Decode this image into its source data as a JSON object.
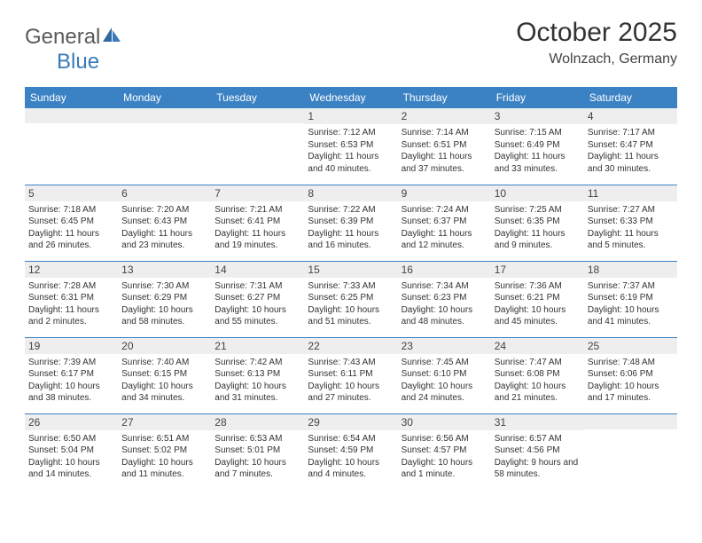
{
  "logo": {
    "text1": "General",
    "text2": "Blue"
  },
  "title": "October 2025",
  "location": "Wolnzach, Germany",
  "colors": {
    "header_bg": "#3b82c4",
    "header_text": "#ffffff",
    "daynum_bg": "#eeeeee",
    "border": "#3b82c4",
    "logo_gray": "#5a5a5a",
    "logo_blue": "#3a7ab8"
  },
  "day_headers": [
    "Sunday",
    "Monday",
    "Tuesday",
    "Wednesday",
    "Thursday",
    "Friday",
    "Saturday"
  ],
  "weeks": [
    [
      {
        "day": "",
        "sunrise": "",
        "sunset": "",
        "daylight": ""
      },
      {
        "day": "",
        "sunrise": "",
        "sunset": "",
        "daylight": ""
      },
      {
        "day": "",
        "sunrise": "",
        "sunset": "",
        "daylight": ""
      },
      {
        "day": "1",
        "sunrise": "Sunrise: 7:12 AM",
        "sunset": "Sunset: 6:53 PM",
        "daylight": "Daylight: 11 hours and 40 minutes."
      },
      {
        "day": "2",
        "sunrise": "Sunrise: 7:14 AM",
        "sunset": "Sunset: 6:51 PM",
        "daylight": "Daylight: 11 hours and 37 minutes."
      },
      {
        "day": "3",
        "sunrise": "Sunrise: 7:15 AM",
        "sunset": "Sunset: 6:49 PM",
        "daylight": "Daylight: 11 hours and 33 minutes."
      },
      {
        "day": "4",
        "sunrise": "Sunrise: 7:17 AM",
        "sunset": "Sunset: 6:47 PM",
        "daylight": "Daylight: 11 hours and 30 minutes."
      }
    ],
    [
      {
        "day": "5",
        "sunrise": "Sunrise: 7:18 AM",
        "sunset": "Sunset: 6:45 PM",
        "daylight": "Daylight: 11 hours and 26 minutes."
      },
      {
        "day": "6",
        "sunrise": "Sunrise: 7:20 AM",
        "sunset": "Sunset: 6:43 PM",
        "daylight": "Daylight: 11 hours and 23 minutes."
      },
      {
        "day": "7",
        "sunrise": "Sunrise: 7:21 AM",
        "sunset": "Sunset: 6:41 PM",
        "daylight": "Daylight: 11 hours and 19 minutes."
      },
      {
        "day": "8",
        "sunrise": "Sunrise: 7:22 AM",
        "sunset": "Sunset: 6:39 PM",
        "daylight": "Daylight: 11 hours and 16 minutes."
      },
      {
        "day": "9",
        "sunrise": "Sunrise: 7:24 AM",
        "sunset": "Sunset: 6:37 PM",
        "daylight": "Daylight: 11 hours and 12 minutes."
      },
      {
        "day": "10",
        "sunrise": "Sunrise: 7:25 AM",
        "sunset": "Sunset: 6:35 PM",
        "daylight": "Daylight: 11 hours and 9 minutes."
      },
      {
        "day": "11",
        "sunrise": "Sunrise: 7:27 AM",
        "sunset": "Sunset: 6:33 PM",
        "daylight": "Daylight: 11 hours and 5 minutes."
      }
    ],
    [
      {
        "day": "12",
        "sunrise": "Sunrise: 7:28 AM",
        "sunset": "Sunset: 6:31 PM",
        "daylight": "Daylight: 11 hours and 2 minutes."
      },
      {
        "day": "13",
        "sunrise": "Sunrise: 7:30 AM",
        "sunset": "Sunset: 6:29 PM",
        "daylight": "Daylight: 10 hours and 58 minutes."
      },
      {
        "day": "14",
        "sunrise": "Sunrise: 7:31 AM",
        "sunset": "Sunset: 6:27 PM",
        "daylight": "Daylight: 10 hours and 55 minutes."
      },
      {
        "day": "15",
        "sunrise": "Sunrise: 7:33 AM",
        "sunset": "Sunset: 6:25 PM",
        "daylight": "Daylight: 10 hours and 51 minutes."
      },
      {
        "day": "16",
        "sunrise": "Sunrise: 7:34 AM",
        "sunset": "Sunset: 6:23 PM",
        "daylight": "Daylight: 10 hours and 48 minutes."
      },
      {
        "day": "17",
        "sunrise": "Sunrise: 7:36 AM",
        "sunset": "Sunset: 6:21 PM",
        "daylight": "Daylight: 10 hours and 45 minutes."
      },
      {
        "day": "18",
        "sunrise": "Sunrise: 7:37 AM",
        "sunset": "Sunset: 6:19 PM",
        "daylight": "Daylight: 10 hours and 41 minutes."
      }
    ],
    [
      {
        "day": "19",
        "sunrise": "Sunrise: 7:39 AM",
        "sunset": "Sunset: 6:17 PM",
        "daylight": "Daylight: 10 hours and 38 minutes."
      },
      {
        "day": "20",
        "sunrise": "Sunrise: 7:40 AM",
        "sunset": "Sunset: 6:15 PM",
        "daylight": "Daylight: 10 hours and 34 minutes."
      },
      {
        "day": "21",
        "sunrise": "Sunrise: 7:42 AM",
        "sunset": "Sunset: 6:13 PM",
        "daylight": "Daylight: 10 hours and 31 minutes."
      },
      {
        "day": "22",
        "sunrise": "Sunrise: 7:43 AM",
        "sunset": "Sunset: 6:11 PM",
        "daylight": "Daylight: 10 hours and 27 minutes."
      },
      {
        "day": "23",
        "sunrise": "Sunrise: 7:45 AM",
        "sunset": "Sunset: 6:10 PM",
        "daylight": "Daylight: 10 hours and 24 minutes."
      },
      {
        "day": "24",
        "sunrise": "Sunrise: 7:47 AM",
        "sunset": "Sunset: 6:08 PM",
        "daylight": "Daylight: 10 hours and 21 minutes."
      },
      {
        "day": "25",
        "sunrise": "Sunrise: 7:48 AM",
        "sunset": "Sunset: 6:06 PM",
        "daylight": "Daylight: 10 hours and 17 minutes."
      }
    ],
    [
      {
        "day": "26",
        "sunrise": "Sunrise: 6:50 AM",
        "sunset": "Sunset: 5:04 PM",
        "daylight": "Daylight: 10 hours and 14 minutes."
      },
      {
        "day": "27",
        "sunrise": "Sunrise: 6:51 AM",
        "sunset": "Sunset: 5:02 PM",
        "daylight": "Daylight: 10 hours and 11 minutes."
      },
      {
        "day": "28",
        "sunrise": "Sunrise: 6:53 AM",
        "sunset": "Sunset: 5:01 PM",
        "daylight": "Daylight: 10 hours and 7 minutes."
      },
      {
        "day": "29",
        "sunrise": "Sunrise: 6:54 AM",
        "sunset": "Sunset: 4:59 PM",
        "daylight": "Daylight: 10 hours and 4 minutes."
      },
      {
        "day": "30",
        "sunrise": "Sunrise: 6:56 AM",
        "sunset": "Sunset: 4:57 PM",
        "daylight": "Daylight: 10 hours and 1 minute."
      },
      {
        "day": "31",
        "sunrise": "Sunrise: 6:57 AM",
        "sunset": "Sunset: 4:56 PM",
        "daylight": "Daylight: 9 hours and 58 minutes."
      },
      {
        "day": "",
        "sunrise": "",
        "sunset": "",
        "daylight": ""
      }
    ]
  ]
}
